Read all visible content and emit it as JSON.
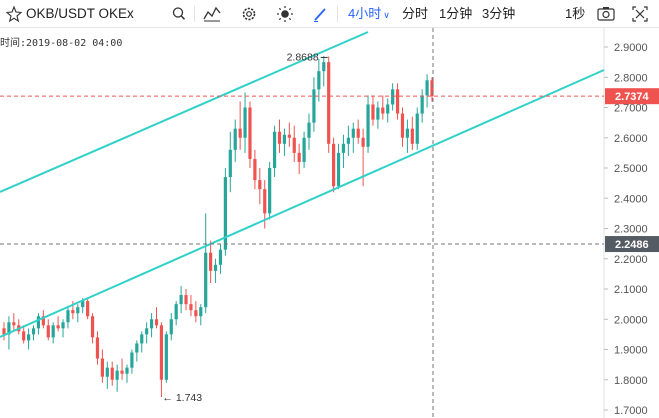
{
  "toolbar": {
    "symbol": "OKB/USDT OKEx",
    "interval_label": "4小时",
    "tf_min": "分时",
    "tf_1m": "1分钟",
    "tf_3m": "3分钟",
    "tf_1s": "1秒",
    "icons": [
      "star-icon",
      "search-icon",
      "indicator-icon",
      "settings-icon",
      "theme-icon",
      "pen-icon",
      "camera-icon",
      "fullscreen-icon"
    ],
    "accent": "#2962ff"
  },
  "time_label": "时间:2019-08-02 04:00",
  "chart_data": {
    "type": "candlestick",
    "ylim": [
      1.7,
      2.94
    ],
    "y_ticks": [
      "2.9000",
      "2.8000",
      "2.7000",
      "2.6000",
      "2.5000",
      "2.4000",
      "2.3000",
      "2.2000",
      "2.1000",
      "2.0000",
      "1.9000",
      "1.8000",
      "1.7000"
    ],
    "current_price": "2.7374",
    "crosshair_price": "2.2486",
    "high_annotation": "2.8688",
    "low_annotation": "1.743",
    "up_color": "#26a69a",
    "down_color": "#ef5350",
    "channel_color": "#2fd1c8",
    "candles": [
      [
        1.97,
        1.99,
        1.93,
        1.95
      ],
      [
        1.95,
        2.01,
        1.9,
        1.99
      ],
      [
        1.99,
        2.02,
        1.96,
        1.98
      ],
      [
        1.98,
        2.0,
        1.95,
        1.96
      ],
      [
        1.96,
        1.98,
        1.92,
        1.93
      ],
      [
        1.93,
        1.97,
        1.9,
        1.95
      ],
      [
        1.95,
        1.98,
        1.93,
        1.97
      ],
      [
        1.97,
        2.02,
        1.95,
        2.01
      ],
      [
        2.01,
        2.03,
        1.97,
        1.98
      ],
      [
        1.98,
        2.0,
        1.93,
        1.94
      ],
      [
        1.94,
        1.99,
        1.92,
        1.98
      ],
      [
        1.98,
        2.01,
        1.96,
        1.97
      ],
      [
        1.97,
        2.0,
        1.94,
        1.99
      ],
      [
        1.99,
        2.04,
        1.97,
        2.03
      ],
      [
        2.03,
        2.06,
        2.0,
        2.02
      ],
      [
        2.02,
        2.05,
        1.99,
        2.04
      ],
      [
        2.04,
        2.07,
        2.02,
        2.06
      ],
      [
        2.06,
        2.07,
        2.0,
        2.01
      ],
      [
        2.01,
        2.02,
        1.92,
        1.94
      ],
      [
        1.94,
        1.96,
        1.85,
        1.87
      ],
      [
        1.87,
        1.9,
        1.79,
        1.81
      ],
      [
        1.81,
        1.86,
        1.77,
        1.84
      ],
      [
        1.84,
        1.86,
        1.78,
        1.8
      ],
      [
        1.8,
        1.85,
        1.76,
        1.83
      ],
      [
        1.83,
        1.87,
        1.8,
        1.82
      ],
      [
        1.82,
        1.85,
        1.79,
        1.84
      ],
      [
        1.84,
        1.9,
        1.82,
        1.89
      ],
      [
        1.89,
        1.93,
        1.86,
        1.92
      ],
      [
        1.92,
        1.96,
        1.89,
        1.95
      ],
      [
        1.95,
        1.99,
        1.92,
        1.97
      ],
      [
        1.97,
        2.02,
        1.94,
        2.0
      ],
      [
        2.0,
        2.04,
        1.97,
        1.98
      ],
      [
        1.98,
        1.99,
        1.743,
        1.8
      ],
      [
        1.8,
        1.96,
        1.79,
        1.95
      ],
      [
        1.95,
        2.02,
        1.93,
        2.0
      ],
      [
        2.0,
        2.06,
        1.98,
        2.05
      ],
      [
        2.05,
        2.11,
        2.02,
        2.08
      ],
      [
        2.08,
        2.1,
        2.03,
        2.05
      ],
      [
        2.05,
        2.08,
        2.01,
        2.03
      ],
      [
        2.03,
        2.06,
        1.99,
        2.01
      ],
      [
        2.01,
        2.05,
        1.98,
        2.04
      ],
      [
        2.04,
        2.35,
        2.02,
        2.22
      ],
      [
        2.22,
        2.26,
        2.12,
        2.16
      ],
      [
        2.16,
        2.2,
        2.12,
        2.18
      ],
      [
        2.18,
        2.25,
        2.15,
        2.23
      ],
      [
        2.23,
        2.5,
        2.21,
        2.47
      ],
      [
        2.47,
        2.62,
        2.42,
        2.56
      ],
      [
        2.56,
        2.66,
        2.52,
        2.63
      ],
      [
        2.63,
        2.72,
        2.56,
        2.6
      ],
      [
        2.6,
        2.75,
        2.55,
        2.7
      ],
      [
        2.7,
        2.72,
        2.5,
        2.53
      ],
      [
        2.53,
        2.56,
        2.43,
        2.46
      ],
      [
        2.46,
        2.5,
        2.38,
        2.43
      ],
      [
        2.43,
        2.46,
        2.3,
        2.35
      ],
      [
        2.35,
        2.52,
        2.33,
        2.5
      ],
      [
        2.5,
        2.64,
        2.47,
        2.62
      ],
      [
        2.62,
        2.66,
        2.55,
        2.58
      ],
      [
        2.58,
        2.63,
        2.54,
        2.61
      ],
      [
        2.61,
        2.65,
        2.57,
        2.6
      ],
      [
        2.6,
        2.64,
        2.52,
        2.55
      ],
      [
        2.55,
        2.58,
        2.48,
        2.52
      ],
      [
        2.52,
        2.62,
        2.5,
        2.6
      ],
      [
        2.6,
        2.68,
        2.56,
        2.65
      ],
      [
        2.65,
        2.8,
        2.62,
        2.76
      ],
      [
        2.76,
        2.86,
        2.72,
        2.82
      ],
      [
        2.82,
        2.87,
        2.77,
        2.85
      ],
      [
        2.85,
        2.8688,
        2.55,
        2.58
      ],
      [
        2.58,
        2.6,
        2.42,
        2.44
      ],
      [
        2.44,
        2.58,
        2.43,
        2.55
      ],
      [
        2.55,
        2.61,
        2.5,
        2.58
      ],
      [
        2.58,
        2.64,
        2.54,
        2.6
      ],
      [
        2.6,
        2.65,
        2.55,
        2.63
      ],
      [
        2.63,
        2.66,
        2.58,
        2.6
      ],
      [
        2.6,
        2.63,
        2.44,
        2.57
      ],
      [
        2.57,
        2.74,
        2.55,
        2.71
      ],
      [
        2.71,
        2.74,
        2.64,
        2.66
      ],
      [
        2.66,
        2.72,
        2.63,
        2.7
      ],
      [
        2.7,
        2.74,
        2.66,
        2.68
      ],
      [
        2.68,
        2.73,
        2.65,
        2.71
      ],
      [
        2.71,
        2.78,
        2.69,
        2.76
      ],
      [
        2.76,
        2.78,
        2.66,
        2.68
      ],
      [
        2.68,
        2.7,
        2.57,
        2.6
      ],
      [
        2.6,
        2.66,
        2.55,
        2.63
      ],
      [
        2.63,
        2.67,
        2.56,
        2.58
      ],
      [
        2.58,
        2.7,
        2.56,
        2.68
      ],
      [
        2.68,
        2.76,
        2.65,
        2.74
      ],
      [
        2.74,
        2.81,
        2.7,
        2.79
      ],
      [
        2.79,
        2.8,
        2.72,
        2.7374
      ]
    ]
  }
}
